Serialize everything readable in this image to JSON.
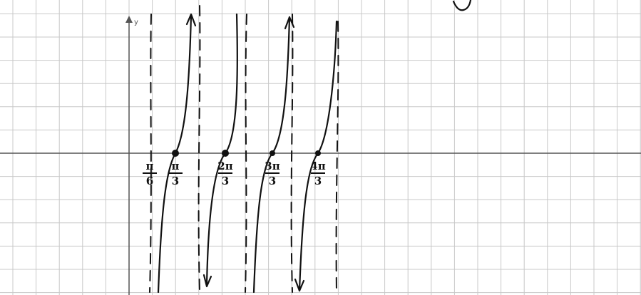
{
  "axis": {
    "y_label": "y"
  },
  "annotations": [
    {
      "numerator": "π",
      "denominator": "6"
    },
    {
      "numerator": "π",
      "denominator": "3"
    },
    {
      "numerator": "2π",
      "denominator": "3"
    },
    {
      "numerator": "3π",
      "denominator": "3"
    },
    {
      "numerator": "4π",
      "denominator": "3"
    }
  ]
}
